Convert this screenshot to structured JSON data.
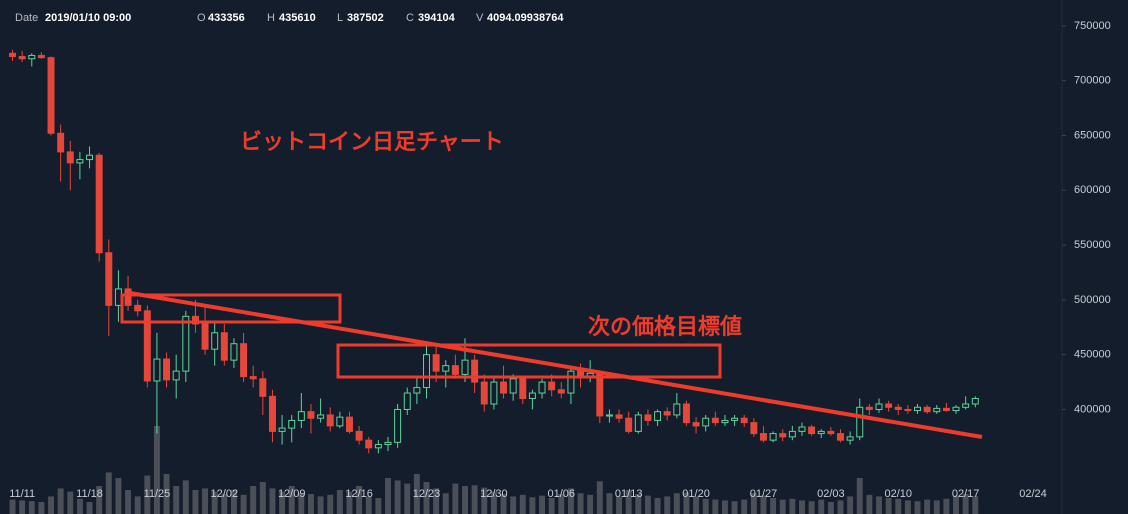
{
  "chart_data": {
    "type": "candlestick",
    "annotations": [
      "ビットコイン日足チャート",
      "次の価格目標値"
    ],
    "header": {
      "date_label": "Date",
      "date": "2019/01/10 09:00",
      "open_label": "O",
      "high_label": "H",
      "low_label": "L",
      "close_label": "C",
      "volume_label": "V"
    },
    "up_color": "#5fd39b",
    "down_color": "#e5483b",
    "volume_color": "#4a4f58",
    "xlim": [
      -2.3,
      107.8
    ],
    "ylim": [
      332000,
      773600
    ],
    "vlim": [
      0,
      12000
    ],
    "xticks": [
      {
        "value": 0,
        "label": "11/11"
      },
      {
        "value": 7,
        "label": "11/18"
      },
      {
        "value": 14,
        "label": "11/25"
      },
      {
        "value": 21,
        "label": "12/02"
      },
      {
        "value": 28,
        "label": "12/09"
      },
      {
        "value": 35,
        "label": "12/16"
      },
      {
        "value": 42,
        "label": "12/23"
      },
      {
        "value": 49,
        "label": "12/30"
      },
      {
        "value": 56,
        "label": "01/06"
      },
      {
        "value": 63,
        "label": "01/13"
      },
      {
        "value": 70,
        "label": "01/20"
      },
      {
        "value": 77,
        "label": "01/27"
      },
      {
        "value": 84,
        "label": "02/03"
      },
      {
        "value": 91,
        "label": "02/10"
      },
      {
        "value": 98,
        "label": "02/17"
      },
      {
        "value": 105,
        "label": "02/24"
      }
    ],
    "yticks": [
      400000,
      450000,
      500000,
      550000,
      600000,
      650000,
      700000,
      750000
    ],
    "x": [
      -1,
      0,
      1,
      2,
      3,
      4,
      5,
      6,
      7,
      8,
      9,
      10,
      11,
      12,
      13,
      14,
      15,
      16,
      17,
      18,
      19,
      20,
      21,
      22,
      23,
      24,
      25,
      26,
      27,
      28,
      29,
      30,
      31,
      32,
      33,
      34,
      35,
      36,
      37,
      38,
      39,
      40,
      41,
      42,
      43,
      44,
      45,
      46,
      47,
      48,
      49,
      50,
      51,
      52,
      53,
      54,
      55,
      56,
      57,
      58,
      59,
      60,
      61,
      62,
      63,
      64,
      65,
      66,
      67,
      68,
      69,
      70,
      71,
      72,
      73,
      74,
      75,
      76,
      77,
      78,
      79,
      80,
      81,
      82,
      83,
      84,
      85,
      86,
      87,
      88,
      89,
      90,
      91,
      92,
      93,
      94,
      95,
      96,
      97,
      98,
      99
    ],
    "open": [
      725000,
      722000,
      720000,
      723000,
      721000,
      652000,
      635000,
      625000,
      628000,
      632000,
      543000,
      495000,
      510000,
      495000,
      490000,
      426000,
      446000,
      427000,
      435000,
      485000,
      478000,
      455000,
      470000,
      445000,
      460000,
      430000,
      428000,
      412000,
      380000,
      383000,
      390000,
      398000,
      392000,
      395000,
      385000,
      393000,
      380000,
      372000,
      365000,
      368000,
      370000,
      400000,
      415000,
      420000,
      450000,
      435000,
      440000,
      432000,
      445000,
      425000,
      405000,
      425000,
      415000,
      428000,
      410000,
      415000,
      425000,
      418000,
      415000,
      435000,
      430000,
      433356,
      394000,
      395000,
      392000,
      380000,
      395000,
      390000,
      398000,
      395000,
      405000,
      388000,
      385000,
      392000,
      388000,
      390000,
      392000,
      388000,
      378000,
      372000,
      378000,
      375000,
      380000,
      384000,
      378000,
      380000,
      378000,
      372000,
      375000,
      402000,
      400000,
      405000,
      402000,
      400000,
      399000,
      402000,
      398000,
      401000,
      399000,
      402000,
      405000
    ],
    "high": [
      728000,
      727000,
      725000,
      726000,
      722000,
      660000,
      645000,
      635000,
      640000,
      634000,
      555000,
      527000,
      522000,
      500000,
      495000,
      470000,
      452000,
      450000,
      490000,
      500000,
      495000,
      480000,
      478000,
      465000,
      470000,
      440000,
      435000,
      418000,
      395000,
      395000,
      415000,
      405000,
      410000,
      402000,
      398000,
      398000,
      385000,
      375000,
      372000,
      375000,
      405000,
      420000,
      430000,
      460000,
      458000,
      445000,
      450000,
      465000,
      450000,
      432000,
      430000,
      440000,
      432000,
      430000,
      418000,
      428000,
      432000,
      425000,
      440000,
      442000,
      445000,
      435610,
      400000,
      400000,
      398000,
      398000,
      400000,
      400000,
      402000,
      415000,
      408000,
      393000,
      395000,
      398000,
      395000,
      395000,
      395000,
      392000,
      385000,
      380000,
      382000,
      385000,
      388000,
      386000,
      382000,
      384000,
      382000,
      380000,
      410000,
      405000,
      410000,
      408000,
      405000,
      404000,
      405000,
      404000,
      404000,
      406000,
      404000,
      412000,
      412000
    ],
    "low": [
      718000,
      717000,
      713000,
      720000,
      650000,
      608000,
      600000,
      610000,
      620000,
      535000,
      467000,
      480000,
      490000,
      485000,
      420000,
      378000,
      420000,
      410000,
      425000,
      470000,
      450000,
      440000,
      440000,
      438000,
      425000,
      420000,
      395000,
      370000,
      368000,
      370000,
      383000,
      378000,
      388000,
      380000,
      383000,
      378000,
      368000,
      360000,
      360000,
      362000,
      365000,
      395000,
      405000,
      410000,
      425000,
      420000,
      428000,
      425000,
      415000,
      398000,
      400000,
      410000,
      408000,
      405000,
      400000,
      410000,
      412000,
      410000,
      405000,
      420000,
      425000,
      387502,
      388000,
      388000,
      378000,
      378000,
      385000,
      385000,
      390000,
      392000,
      385000,
      378000,
      380000,
      385000,
      385000,
      385000,
      384000,
      375000,
      370000,
      370000,
      371000,
      372000,
      376000,
      376000,
      374000,
      376000,
      370000,
      368000,
      372000,
      395000,
      397000,
      398000,
      395000,
      396000,
      396000,
      396000,
      396000,
      398000,
      396000,
      400000,
      402000
    ],
    "close": [
      722000,
      720000,
      723000,
      721000,
      652000,
      635000,
      625000,
      628000,
      632000,
      543000,
      495000,
      510000,
      495000,
      490000,
      426000,
      446000,
      427000,
      435000,
      485000,
      478000,
      455000,
      470000,
      445000,
      460000,
      430000,
      428000,
      412000,
      380000,
      383000,
      390000,
      398000,
      392000,
      395000,
      385000,
      393000,
      380000,
      372000,
      365000,
      368000,
      370000,
      400000,
      415000,
      420000,
      450000,
      435000,
      440000,
      432000,
      445000,
      425000,
      405000,
      425000,
      415000,
      428000,
      410000,
      415000,
      425000,
      418000,
      415000,
      435000,
      430000,
      433000,
      394104,
      395000,
      392000,
      380000,
      395000,
      390000,
      398000,
      395000,
      405000,
      388000,
      385000,
      392000,
      388000,
      390000,
      392000,
      388000,
      378000,
      372000,
      378000,
      375000,
      380000,
      384000,
      378000,
      380000,
      378000,
      372000,
      375000,
      402000,
      400000,
      405000,
      402000,
      400000,
      399000,
      402000,
      398000,
      401000,
      399000,
      402000,
      405000,
      410000
    ],
    "volume": [
      1800,
      1700,
      1600,
      1500,
      2200,
      3200,
      2800,
      1900,
      1500,
      3500,
      5200,
      4500,
      3000,
      2200,
      4800,
      11000,
      5000,
      3500,
      4200,
      3000,
      3200,
      2800,
      2500,
      3000,
      2400,
      3500,
      4000,
      3200,
      2800,
      3500,
      2600,
      2500,
      2200,
      2400,
      3000,
      2800,
      3500,
      2200,
      2000,
      4500,
      4200,
      3800,
      5000,
      4000,
      3200,
      2600,
      3800,
      3500,
      3600,
      3300,
      2800,
      2500,
      2200,
      2400,
      2100,
      2300,
      2000,
      2500,
      3200,
      2600,
      2400,
      4094.09938764,
      2600,
      2200,
      3000,
      2500,
      2300,
      2000,
      2200,
      2600,
      2700,
      2200,
      1900,
      1800,
      1700,
      1600,
      1800,
      2600,
      2300,
      2000,
      1800,
      1900,
      1700,
      1600,
      1800,
      1500,
      1700,
      2200,
      4500,
      2400,
      2200,
      2000,
      1900,
      1700,
      1600,
      1800,
      1700,
      1900,
      2300,
      2500,
      2200
    ]
  }
}
